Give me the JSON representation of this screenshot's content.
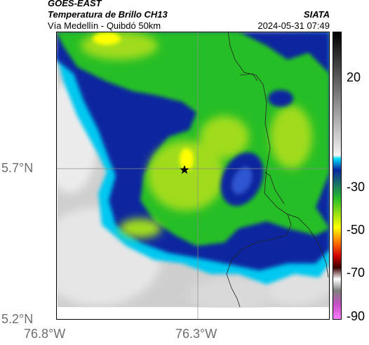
{
  "header": {
    "source": "GOES-EAST",
    "product": "Temperatura de Brillo CH13",
    "region": "Vía Medellín - Quibdó 50km",
    "agency": "SIATA",
    "timestamp": "2024-05-31 07:49"
  },
  "map": {
    "lat_ticks": [
      "5.7°N",
      "5.2°N"
    ],
    "lon_ticks": [
      "76.8°W",
      "76.3°W"
    ],
    "marker_icon": "star-icon"
  },
  "colorbar": {
    "labels": [
      "20",
      "-30",
      "-50",
      "-70",
      "-90"
    ]
  },
  "colors": {
    "warm": "#c8c8c8",
    "cyan": "#00c8f0",
    "blue": "#0a28a0",
    "green": "#28be28",
    "lime": "#a0dc1e",
    "yellow": "#ffff00"
  }
}
